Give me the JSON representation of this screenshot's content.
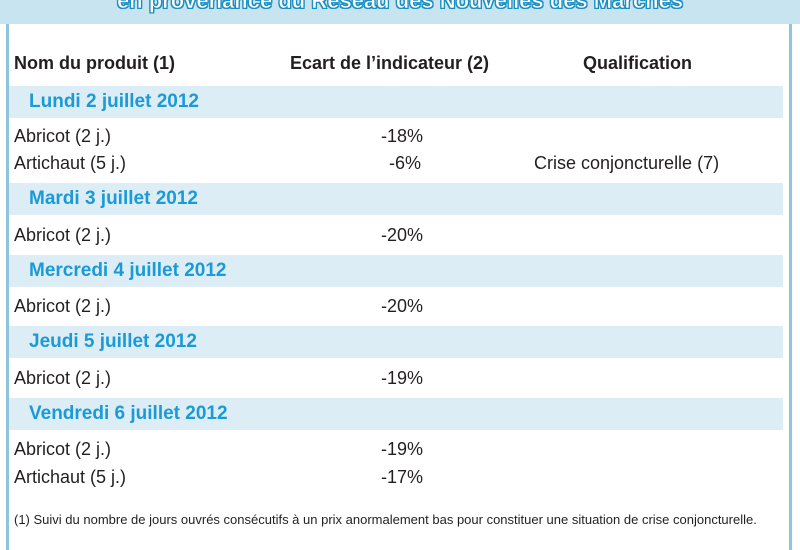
{
  "banner": {
    "title": "en provenance du Réseau des Nouvelles des Marchés"
  },
  "columns": {
    "product": "Nom du produit (1)",
    "indicator": "Ecart de l’indicateur (2)",
    "qualification": "Qualification"
  },
  "days": [
    {
      "label": "Lundi 2 juillet 2012",
      "rows": [
        {
          "product": "Abricot (2 j.)",
          "value": "-18%",
          "qualification": ""
        },
        {
          "product": "Artichaut (5 j.)",
          "value": "-6%",
          "qualification": "Crise conjoncturelle (7)"
        }
      ]
    },
    {
      "label": "Mardi 3 juillet 2012",
      "rows": [
        {
          "product": "Abricot (2 j.)",
          "value": "-20%",
          "qualification": ""
        }
      ]
    },
    {
      "label": "Mercredi 4 juillet 2012",
      "rows": [
        {
          "product": "Abricot (2 j.)",
          "value": "-20%",
          "qualification": ""
        }
      ]
    },
    {
      "label": "Jeudi 5 juillet 2012",
      "rows": [
        {
          "product": "Abricot (2 j.)",
          "value": "-19%",
          "qualification": ""
        }
      ]
    },
    {
      "label": "Vendredi 6 juillet 2012",
      "rows": [
        {
          "product": "Abricot (2 j.)",
          "value": "-19%",
          "qualification": ""
        },
        {
          "product": "Artichaut (5 j.)",
          "value": "-17%",
          "qualification": ""
        }
      ]
    }
  ],
  "footnote": "(1) Suivi du nombre de jours ouvrés consécutifs à un prix anormalement bas pour constituer une situation de crise conjoncturelle."
}
